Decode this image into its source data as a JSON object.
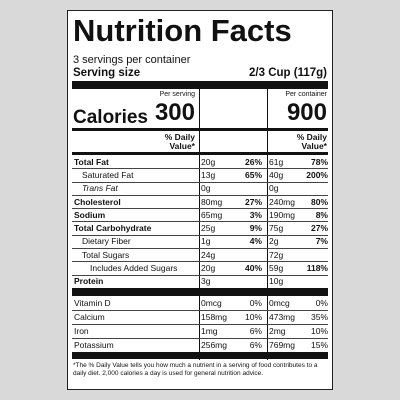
{
  "title": "Nutrition Facts",
  "servings": "3 servings per container",
  "serving_size": {
    "label": "Serving size",
    "value": "2/3 Cup (117g)"
  },
  "columns": {
    "serving": "Per serving",
    "container": "Per container"
  },
  "calories": {
    "label": "Calories",
    "serving": "300",
    "container": "900"
  },
  "daily_value_header": {
    "serving": "% Daily Value*",
    "container": "% Daily Value*"
  },
  "rows": [
    {
      "name": "Total Fat",
      "serving": {
        "amount": "20g",
        "dv": "26%"
      },
      "container": {
        "amount": "61g",
        "dv": "78%"
      }
    },
    {
      "name": "Saturated Fat",
      "serving": {
        "amount": "13g",
        "dv": "65%"
      },
      "container": {
        "amount": "40g",
        "dv": "200%"
      }
    },
    {
      "name": "Trans Fat",
      "serving": {
        "amount": "0g"
      },
      "container": {
        "amount": "0g"
      }
    },
    {
      "name": "Cholesterol",
      "serving": {
        "amount": "80mg",
        "dv": "27%"
      },
      "container": {
        "amount": "240mg",
        "dv": "80%"
      }
    },
    {
      "name": "Sodium",
      "serving": {
        "amount": "65mg",
        "dv": "3%"
      },
      "container": {
        "amount": "190mg",
        "dv": "8%"
      }
    },
    {
      "name": "Total Carbohydrate",
      "serving": {
        "amount": "25g",
        "dv": "9%"
      },
      "container": {
        "amount": "75g",
        "dv": "27%"
      }
    },
    {
      "name": "Dietary Fiber",
      "serving": {
        "amount": "1g",
        "dv": "4%"
      },
      "container": {
        "amount": "2g",
        "dv": "7%"
      }
    },
    {
      "name": "Total Sugars",
      "serving": {
        "amount": "24g"
      },
      "container": {
        "amount": "72g"
      }
    },
    {
      "name": "Includes Added Sugars",
      "serving": {
        "amount": "20g",
        "dv": "40%"
      },
      "container": {
        "amount": "59g",
        "dv": "118%"
      }
    },
    {
      "name": "Protein",
      "serving": {
        "amount": "3g"
      },
      "container": {
        "amount": "10g"
      }
    },
    {
      "name": "Vitamin D",
      "serving": {
        "amount": "0mcg",
        "dv": "0%"
      },
      "container": {
        "amount": "0mcg",
        "dv": "0%"
      }
    },
    {
      "name": "Calcium",
      "serving": {
        "amount": "158mg",
        "dv": "10%"
      },
      "container": {
        "amount": "473mg",
        "dv": "35%"
      }
    },
    {
      "name": "Iron",
      "serving": {
        "amount": "1mg",
        "dv": "6%"
      },
      "container": {
        "amount": "2mg",
        "dv": "10%"
      }
    },
    {
      "name": "Potassium",
      "serving": {
        "amount": "256mg",
        "dv": "6%"
      },
      "container": {
        "amount": "769mg",
        "dv": "15%"
      }
    }
  ],
  "footnote": "*The % Daily Value tells you how much a nutrient in a serving of food contributes to a daily diet. 2,000 calories a day is used for general nutrition advice."
}
